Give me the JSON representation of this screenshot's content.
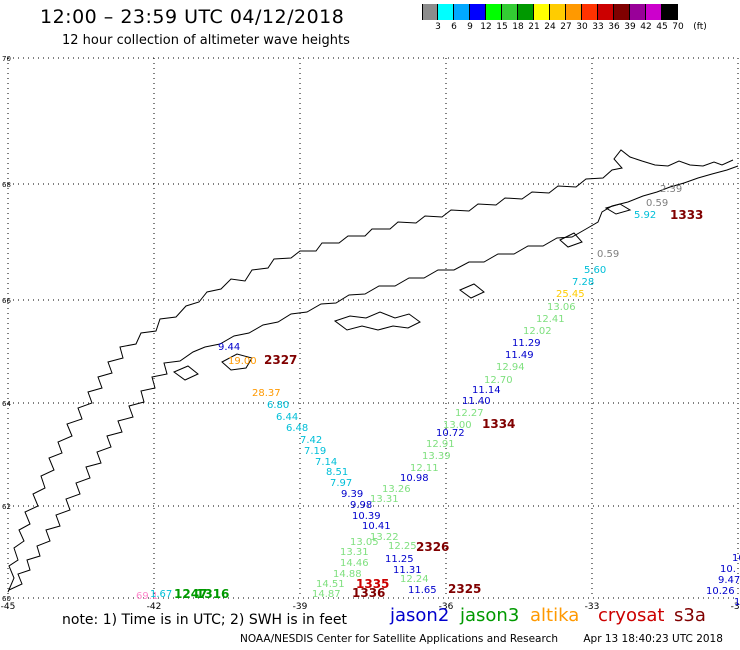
{
  "header": {
    "title": "12:00 – 23:59 UTC 04/12/2018",
    "subtitle": "12 hour collection of altimeter wave heights"
  },
  "colorbar": {
    "unit": "(ft)",
    "labels": [
      "3",
      "6",
      "9",
      "12",
      "15",
      "18",
      "21",
      "24",
      "27",
      "30",
      "33",
      "36",
      "39",
      "42",
      "45",
      "70"
    ],
    "colors": [
      "#8c8c8c",
      "#00ffff",
      "#00a8ff",
      "#0000ff",
      "#00ff00",
      "#33cc33",
      "#009900",
      "#ffff00",
      "#ffcc00",
      "#ff9900",
      "#ff3300",
      "#cc0000",
      "#800000",
      "#990099",
      "#cc00cc",
      "#000000"
    ]
  },
  "axes": {
    "lon_labels": [
      "-45",
      "-42",
      "-39",
      "-36",
      "-33",
      "-30"
    ],
    "lat_labels": [
      "70",
      "68",
      "66",
      "64",
      "62",
      "60"
    ]
  },
  "observations": [
    {
      "text": "2.39",
      "color": "#7f7f7f"
    },
    {
      "text": "0.59",
      "color": "#7f7f7f"
    },
    {
      "text": "5.92",
      "color": "#00bfd8"
    },
    {
      "text": "1333",
      "color": "#800000"
    },
    {
      "text": "0.59",
      "color": "#7f7f7f"
    },
    {
      "text": "5.60",
      "color": "#00bfd8"
    },
    {
      "text": "7.28",
      "color": "#00bfd8"
    },
    {
      "text": "25.45",
      "color": "#ffcc00"
    },
    {
      "text": "13.06",
      "color": "#7fe07f"
    },
    {
      "text": "12.41",
      "color": "#7fe07f"
    },
    {
      "text": "12.02",
      "color": "#7fe07f"
    },
    {
      "text": "11.29",
      "color": "#0000cc"
    },
    {
      "text": "11.49",
      "color": "#0000cc"
    },
    {
      "text": "12.94",
      "color": "#7fe07f"
    },
    {
      "text": "12.70",
      "color": "#7fe07f"
    },
    {
      "text": "11.14",
      "color": "#0000cc"
    },
    {
      "text": "11.40",
      "color": "#0000cc"
    },
    {
      "text": "12.27",
      "color": "#7fe07f"
    },
    {
      "text": "13.00",
      "color": "#7fe07f"
    },
    {
      "text": "10.72",
      "color": "#0000cc"
    },
    {
      "text": "1334",
      "color": "#800000"
    },
    {
      "text": "12.91",
      "color": "#7fe07f"
    },
    {
      "text": "13.39",
      "color": "#7fe07f"
    },
    {
      "text": "12.11",
      "color": "#7fe07f"
    },
    {
      "text": "10.98",
      "color": "#0000cc"
    },
    {
      "text": "13.26",
      "color": "#7fe07f"
    },
    {
      "text": "13.31",
      "color": "#7fe07f"
    },
    {
      "text": "9.98",
      "color": "#0000cc"
    },
    {
      "text": "10.39",
      "color": "#0000cc"
    },
    {
      "text": "10.41",
      "color": "#0000cc"
    },
    {
      "text": "13.22",
      "color": "#7fe07f"
    },
    {
      "text": "13.05",
      "color": "#7fe07f"
    },
    {
      "text": "12.25",
      "color": "#7fe07f"
    },
    {
      "text": "13.31",
      "color": "#7fe07f"
    },
    {
      "text": "2326",
      "color": "#800000"
    },
    {
      "text": "11.25",
      "color": "#0000cc"
    },
    {
      "text": "11.31",
      "color": "#0000cc"
    },
    {
      "text": "12.24",
      "color": "#7fe07f"
    },
    {
      "text": "11.65",
      "color": "#0000cc"
    },
    {
      "text": "2325",
      "color": "#800000"
    },
    {
      "text": "14.46",
      "color": "#7fe07f"
    },
    {
      "text": "14.88",
      "color": "#7fe07f"
    },
    {
      "text": "14.51",
      "color": "#7fe07f"
    },
    {
      "text": "14.87",
      "color": "#7fe07f"
    },
    {
      "text": "1335",
      "color": "#cc0000"
    },
    {
      "text": "1336",
      "color": "#800000"
    },
    {
      "text": "9.44",
      "color": "#0000cc"
    },
    {
      "text": "19.00",
      "color": "#ff9900"
    },
    {
      "text": "2327",
      "color": "#800000"
    },
    {
      "text": "28.37",
      "color": "#ff9900"
    },
    {
      "text": "6.80",
      "color": "#00bfd8"
    },
    {
      "text": "6.44",
      "color": "#00bfd8"
    },
    {
      "text": "6.48",
      "color": "#00bfd8"
    },
    {
      "text": "7.42",
      "color": "#00bfd8"
    },
    {
      "text": "7.19",
      "color": "#00bfd8"
    },
    {
      "text": "7.14",
      "color": "#00bfd8"
    },
    {
      "text": "8.51",
      "color": "#00bfd8"
    },
    {
      "text": "7.97",
      "color": "#00bfd8"
    },
    {
      "text": "9.39",
      "color": "#0000cc"
    },
    {
      "text": "69.1",
      "color": "#ff88cc"
    },
    {
      "text": "1.67",
      "color": "#00bfd8"
    },
    {
      "text": "1247",
      "color": "#009900"
    },
    {
      "text": "1316",
      "color": "#009900"
    },
    {
      "text": "10.",
      "color": "#0000cc"
    },
    {
      "text": "10.",
      "color": "#0000cc"
    },
    {
      "text": "9.47",
      "color": "#0000cc"
    },
    {
      "text": "10.26",
      "color": "#0000cc"
    },
    {
      "text": "10.",
      "color": "#0000cc"
    }
  ],
  "note": "note:  1) Time is in UTC;  2) SWH is in feet",
  "satellites": [
    {
      "name": "jason2",
      "color": "#0000cc"
    },
    {
      "name": "jason3",
      "color": "#009900"
    },
    {
      "name": "altika",
      "color": "#ff9900"
    },
    {
      "name": "cryosat",
      "color": "#cc0000"
    },
    {
      "name": "s3a",
      "color": "#800000"
    }
  ],
  "footer": {
    "credit": "NOAA/NESDIS Center for Satellite Applications and Research",
    "timestamp": "Apr 13 18:40:23 UTC 2018"
  }
}
